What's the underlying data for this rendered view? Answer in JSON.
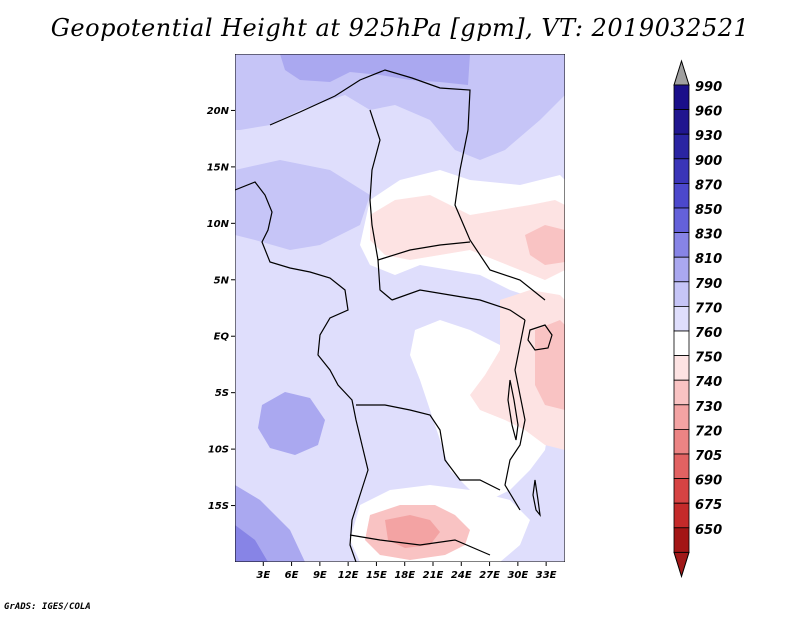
{
  "title": "Geopotential Height at 925hPa [gpm], VT: 2019032521",
  "credit": "GrADS: IGES/COLA",
  "map": {
    "lon_range": [
      0,
      35
    ],
    "lat_range": [
      -20,
      25
    ],
    "lat_ticks": [
      {
        "lat": 20,
        "label": "20N"
      },
      {
        "lat": 15,
        "label": "15N"
      },
      {
        "lat": 10,
        "label": "10N"
      },
      {
        "lat": 5,
        "label": "5N"
      },
      {
        "lat": 0,
        "label": "EQ"
      },
      {
        "lat": -5,
        "label": "5S"
      },
      {
        "lat": -10,
        "label": "10S"
      },
      {
        "lat": -15,
        "label": "15S"
      }
    ],
    "lon_ticks": [
      {
        "lon": 3,
        "label": "3E"
      },
      {
        "lon": 6,
        "label": "6E"
      },
      {
        "lon": 9,
        "label": "9E"
      },
      {
        "lon": 12,
        "label": "12E"
      },
      {
        "lon": 15,
        "label": "15E"
      },
      {
        "lon": 18,
        "label": "18E"
      },
      {
        "lon": 21,
        "label": "21E"
      },
      {
        "lon": 24,
        "label": "24E"
      },
      {
        "lon": 27,
        "label": "27E"
      },
      {
        "lon": 30,
        "label": "30E"
      },
      {
        "lon": 33,
        "label": "33E"
      }
    ]
  },
  "colorbar": {
    "levels": [
      {
        "label": "990",
        "color": "#1a0f8a"
      },
      {
        "label": "960",
        "color": "#20168f"
      },
      {
        "label": "930",
        "color": "#2a24a2"
      },
      {
        "label": "900",
        "color": "#3a35b8"
      },
      {
        "label": "870",
        "color": "#4c48cc"
      },
      {
        "label": "850",
        "color": "#6461da"
      },
      {
        "label": "830",
        "color": "#8784e6"
      },
      {
        "label": "810",
        "color": "#aaa8f0"
      },
      {
        "label": "790",
        "color": "#c6c5f7"
      },
      {
        "label": "770",
        "color": "#dfdefc"
      },
      {
        "label": "760",
        "color": "#ffffff"
      },
      {
        "label": "750",
        "color": "#fde3e3"
      },
      {
        "label": "740",
        "color": "#f9c3c3"
      },
      {
        "label": "730",
        "color": "#f3a3a3"
      },
      {
        "label": "720",
        "color": "#ec8484"
      },
      {
        "label": "705",
        "color": "#e26262"
      },
      {
        "label": "690",
        "color": "#d64343"
      },
      {
        "label": "675",
        "color": "#c42a2a"
      },
      {
        "label": "650",
        "color": "#a31616"
      }
    ],
    "top_arrow_color": "#a0a0a0",
    "bottom_arrow_color": "#a01818"
  },
  "colors": {
    "base_field": "#dfdefc",
    "low_band": "#c6c5f7",
    "lower_band": "#aaa8f0",
    "white_region": "#ffffff",
    "pink_light": "#fde3e3",
    "pink_mid": "#f9c3c3",
    "pink_strong": "#f3a3a3",
    "coast_line": "#000000"
  }
}
